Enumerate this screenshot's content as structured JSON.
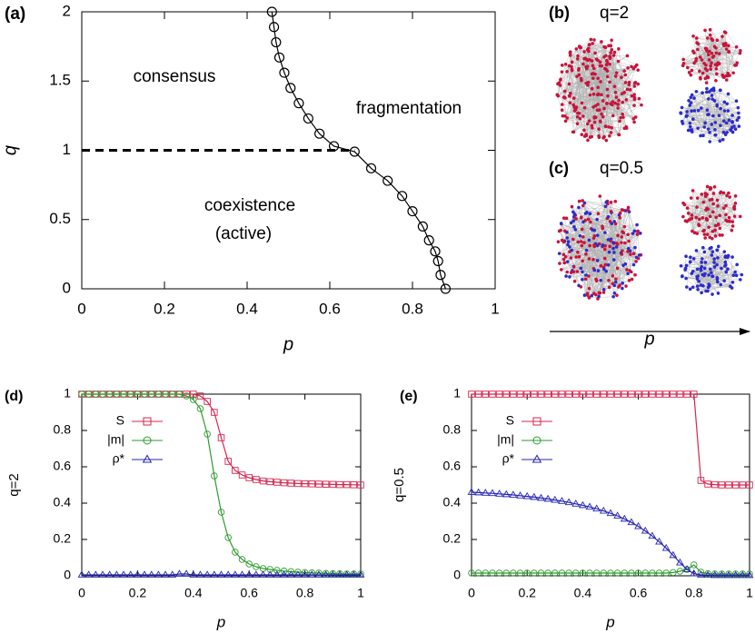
{
  "chart_data": [
    {
      "type": "line",
      "panel": "(a)",
      "xlabel": "p",
      "ylabel": "q",
      "xlim": [
        0,
        1
      ],
      "ylim": [
        0,
        2
      ],
      "xticks": [
        0,
        0.2,
        0.4,
        0.6,
        0.8,
        1
      ],
      "yticks": [
        0,
        0.5,
        1,
        1.5,
        2
      ],
      "grid": false,
      "annotations": [
        "consensus",
        "fragmentation",
        "coexistence",
        "(active)"
      ],
      "series": [
        {
          "color": "#000000",
          "marker": "circle",
          "x": [
            0.46,
            0.465,
            0.47,
            0.478,
            0.49,
            0.505,
            0.525,
            0.548,
            0.575,
            0.61,
            0.66,
            0.7,
            0.74,
            0.775,
            0.8,
            0.825,
            0.84,
            0.855,
            0.862,
            0.868,
            0.88
          ],
          "values": [
            2.0,
            1.89,
            1.78,
            1.67,
            1.56,
            1.45,
            1.34,
            1.23,
            1.12,
            1.03,
            0.99,
            0.87,
            0.78,
            0.67,
            0.56,
            0.45,
            0.35,
            0.27,
            0.2,
            0.1,
            0.0
          ]
        },
        {
          "color": "#000000",
          "dash": true,
          "x": [
            0,
            0.66
          ],
          "values": [
            1,
            1
          ]
        }
      ]
    },
    {
      "type": "network",
      "xlabel": "p",
      "colors": [
        "#c8143c",
        "#2c2ccc"
      ],
      "panels": [
        {
          "label": "(b)",
          "title": "q=2",
          "clusters": [
            [
              "#c8143c"
            ],
            [
              "#c8143c"
            ],
            [
              "#2c2ccc"
            ]
          ]
        },
        {
          "label": "(c)",
          "title": "q=0.5",
          "clusters": [
            [
              "#c8143c",
              "#2c2ccc"
            ],
            [
              "#c8143c"
            ],
            [
              "#2c2ccc"
            ]
          ]
        }
      ]
    },
    {
      "type": "line",
      "panel": "(d)",
      "xlabel": "p",
      "ylabel": "q=2",
      "legend": "upper left",
      "xlim": [
        0,
        1
      ],
      "ylim": [
        0,
        1
      ],
      "xticks": [
        0,
        0.2,
        0.4,
        0.6,
        0.8,
        1
      ],
      "yticks": [
        0,
        0.2,
        0.4,
        0.6,
        0.8,
        1
      ],
      "grid": false,
      "x": [
        0,
        0.025,
        0.05,
        0.075,
        0.1,
        0.125,
        0.15,
        0.175,
        0.2,
        0.225,
        0.25,
        0.275,
        0.3,
        0.325,
        0.35,
        0.375,
        0.4,
        0.425,
        0.45,
        0.475,
        0.5,
        0.525,
        0.55,
        0.575,
        0.6,
        0.625,
        0.65,
        0.675,
        0.7,
        0.725,
        0.75,
        0.775,
        0.8,
        0.825,
        0.85,
        0.875,
        0.9,
        0.925,
        0.95,
        0.975,
        1
      ],
      "series": [
        {
          "name": "S",
          "color": "#d6254f",
          "marker": "square",
          "values": [
            1,
            1,
            1,
            1,
            1,
            1,
            1,
            1,
            1,
            1,
            1,
            1,
            1,
            1,
            1,
            1,
            1,
            0.99,
            0.96,
            0.9,
            0.76,
            0.63,
            0.58,
            0.555,
            0.54,
            0.53,
            0.522,
            0.518,
            0.515,
            0.512,
            0.51,
            0.508,
            0.507,
            0.506,
            0.505,
            0.504,
            0.503,
            0.502,
            0.502,
            0.501,
            0.5
          ]
        },
        {
          "name": "|m|",
          "color": "#2f9a2f",
          "marker": "circle",
          "values": [
            1,
            1,
            1,
            1,
            1,
            1,
            1,
            1,
            1,
            1,
            1,
            1,
            1,
            1,
            1,
            0.99,
            0.97,
            0.92,
            0.78,
            0.55,
            0.35,
            0.21,
            0.13,
            0.09,
            0.065,
            0.05,
            0.04,
            0.035,
            0.03,
            0.026,
            0.023,
            0.02,
            0.018,
            0.016,
            0.015,
            0.013,
            0.012,
            0.011,
            0.01,
            0.01,
            0.01
          ]
        },
        {
          "name": "ρ*",
          "color": "#2424b4",
          "marker": "triangle",
          "values": [
            0.005,
            0.005,
            0.005,
            0.005,
            0.005,
            0.005,
            0.005,
            0.005,
            0.005,
            0.005,
            0.005,
            0.005,
            0.005,
            0.005,
            0.01,
            0.01,
            0.005,
            0.005,
            0.005,
            0.005,
            0.005,
            0.005,
            0.005,
            0.005,
            0.005,
            0.005,
            0.005,
            0.005,
            0.005,
            0.005,
            0.005,
            0.005,
            0.005,
            0.005,
            0.005,
            0.005,
            0.005,
            0.005,
            0.005,
            0.005,
            0.005
          ]
        }
      ]
    },
    {
      "type": "line",
      "panel": "(e)",
      "xlabel": "p",
      "ylabel": "q=0.5",
      "legend": "upper left",
      "xlim": [
        0,
        1
      ],
      "ylim": [
        0,
        1
      ],
      "xticks": [
        0,
        0.2,
        0.4,
        0.6,
        0.8,
        1
      ],
      "yticks": [
        0,
        0.2,
        0.4,
        0.6,
        0.8,
        1
      ],
      "grid": false,
      "x": [
        0,
        0.025,
        0.05,
        0.075,
        0.1,
        0.125,
        0.15,
        0.175,
        0.2,
        0.225,
        0.25,
        0.275,
        0.3,
        0.325,
        0.35,
        0.375,
        0.4,
        0.425,
        0.45,
        0.475,
        0.5,
        0.525,
        0.55,
        0.575,
        0.6,
        0.625,
        0.65,
        0.675,
        0.7,
        0.725,
        0.75,
        0.775,
        0.8,
        0.825,
        0.85,
        0.875,
        0.9,
        0.925,
        0.95,
        0.975,
        1
      ],
      "series": [
        {
          "name": "S",
          "color": "#d6254f",
          "marker": "square",
          "values": [
            1,
            1,
            1,
            1,
            1,
            1,
            1,
            1,
            1,
            1,
            1,
            1,
            1,
            1,
            1,
            1,
            1,
            1,
            1,
            1,
            1,
            1,
            1,
            1,
            1,
            1,
            1,
            1,
            1,
            1,
            1,
            1,
            1,
            0.525,
            0.505,
            0.502,
            0.5,
            0.5,
            0.5,
            0.5,
            0.5
          ]
        },
        {
          "name": "|m|",
          "color": "#2f9a2f",
          "marker": "circle",
          "values": [
            0.015,
            0.015,
            0.015,
            0.015,
            0.015,
            0.015,
            0.015,
            0.015,
            0.015,
            0.015,
            0.015,
            0.015,
            0.015,
            0.015,
            0.015,
            0.015,
            0.015,
            0.015,
            0.015,
            0.015,
            0.015,
            0.015,
            0.015,
            0.015,
            0.015,
            0.015,
            0.015,
            0.015,
            0.015,
            0.018,
            0.025,
            0.035,
            0.06,
            0.02,
            0.012,
            0.01,
            0.01,
            0.01,
            0.01,
            0.01,
            0.01
          ]
        },
        {
          "name": "ρ*",
          "color": "#2424b4",
          "marker": "triangle",
          "values": [
            0.46,
            0.458,
            0.456,
            0.454,
            0.451,
            0.448,
            0.445,
            0.441,
            0.437,
            0.433,
            0.428,
            0.423,
            0.417,
            0.411,
            0.404,
            0.396,
            0.388,
            0.379,
            0.369,
            0.357,
            0.344,
            0.33,
            0.313,
            0.294,
            0.272,
            0.247,
            0.219,
            0.187,
            0.152,
            0.113,
            0.072,
            0.035,
            0.012,
            0.005,
            0.004,
            0.003,
            0.003,
            0.003,
            0.003,
            0.003,
            0.003
          ]
        }
      ]
    }
  ]
}
